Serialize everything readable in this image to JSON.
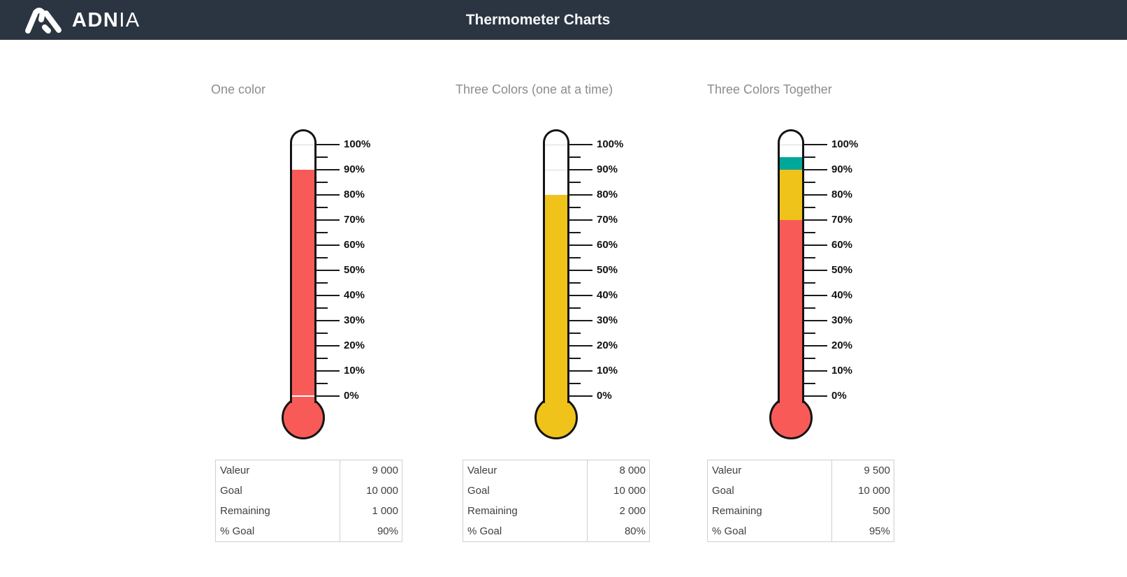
{
  "header": {
    "logo_bold": "ADN",
    "logo_light": "IA",
    "title": "Thermometer Charts",
    "bg_color": "#2B3541"
  },
  "colors": {
    "red": "#F85B57",
    "yellow": "#EFC319",
    "teal": "#00A79B",
    "outline": "#141414",
    "guide_line": "#D9D9D9",
    "title_gray": "#8C8C8C"
  },
  "chart_data": [
    {
      "type": "bar",
      "subtype": "thermometer",
      "title": "One color",
      "axis": {
        "min": 0,
        "max": 100,
        "major_step": 10,
        "minor_step": 5,
        "tick_labels": [
          "0%",
          "10%",
          "20%",
          "30%",
          "40%",
          "50%",
          "60%",
          "70%",
          "80%",
          "90%",
          "100%"
        ]
      },
      "percent_fill": 90,
      "segments": [
        {
          "name": "value",
          "color": "red",
          "from": 0,
          "to": 90
        }
      ],
      "guide_lines": [
        100
      ],
      "junction_line": true,
      "bulb_color": "red",
      "table": {
        "rows": [
          [
            "Valeur",
            "9 000"
          ],
          [
            "Goal",
            "10 000"
          ],
          [
            "Remaining",
            "1 000"
          ],
          [
            "% Goal",
            "90%"
          ]
        ]
      }
    },
    {
      "type": "bar",
      "subtype": "thermometer",
      "title": "Three Colors (one at a time)",
      "axis": {
        "min": 0,
        "max": 100,
        "major_step": 10,
        "minor_step": 5,
        "tick_labels": [
          "0%",
          "10%",
          "20%",
          "30%",
          "40%",
          "50%",
          "60%",
          "70%",
          "80%",
          "90%",
          "100%"
        ]
      },
      "percent_fill": 80,
      "segments": [
        {
          "name": "value",
          "color": "yellow",
          "from": 0,
          "to": 80
        }
      ],
      "guide_lines": [
        90,
        100
      ],
      "junction_line": false,
      "bulb_color": "yellow",
      "table": {
        "rows": [
          [
            "Valeur",
            "8 000"
          ],
          [
            "Goal",
            "10 000"
          ],
          [
            "Remaining",
            "2 000"
          ],
          [
            "% Goal",
            "80%"
          ]
        ]
      }
    },
    {
      "type": "bar",
      "subtype": "thermometer",
      "title": "Three Colors Together",
      "axis": {
        "min": 0,
        "max": 100,
        "major_step": 10,
        "minor_step": 5,
        "tick_labels": [
          "0%",
          "10%",
          "20%",
          "30%",
          "40%",
          "50%",
          "60%",
          "70%",
          "80%",
          "90%",
          "100%"
        ]
      },
      "percent_fill": 95,
      "segments": [
        {
          "name": "tier-1",
          "color": "red",
          "from": 0,
          "to": 70
        },
        {
          "name": "tier-2",
          "color": "yellow",
          "from": 70,
          "to": 90
        },
        {
          "name": "tier-3",
          "color": "teal",
          "from": 90,
          "to": 95
        }
      ],
      "guide_lines": [
        100
      ],
      "junction_line": false,
      "bulb_color": "red",
      "table": {
        "rows": [
          [
            "Valeur",
            "9 500"
          ],
          [
            "Goal",
            "10 000"
          ],
          [
            "Remaining",
            "500"
          ],
          [
            "% Goal",
            "95%"
          ]
        ]
      }
    }
  ]
}
